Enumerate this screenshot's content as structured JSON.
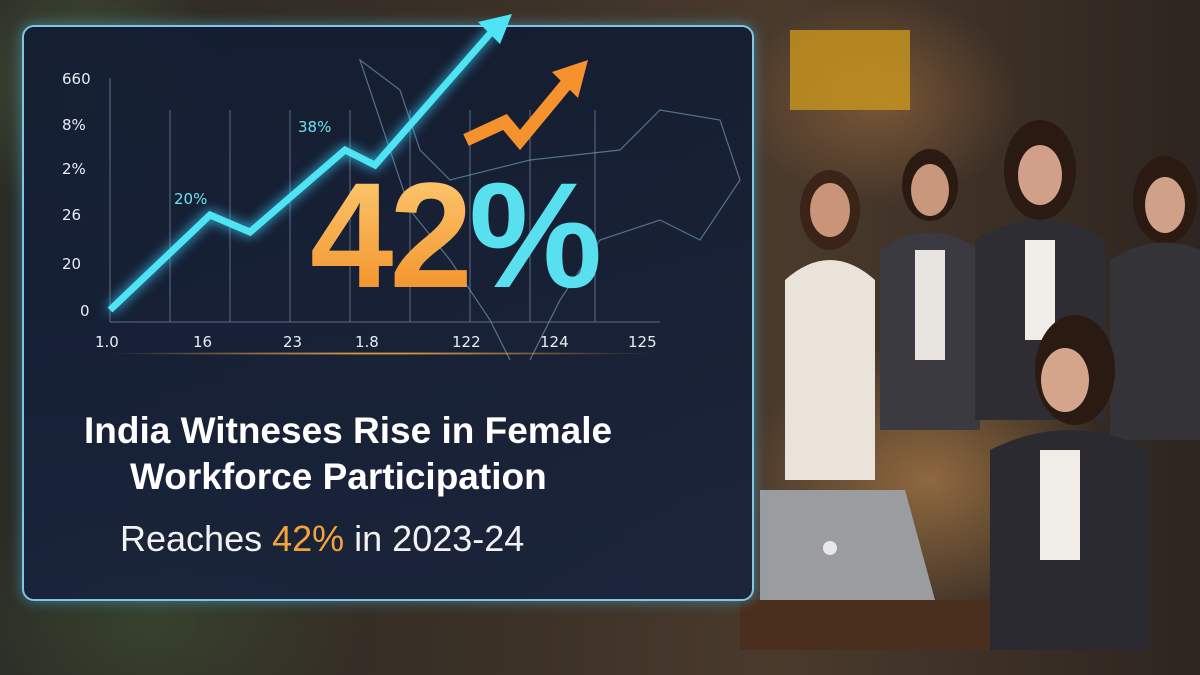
{
  "chart": {
    "y_ticks": [
      "660",
      "8%",
      "2%",
      "26",
      "20",
      "0"
    ],
    "x_ticks": [
      "1.0",
      "16",
      "23",
      "1.8",
      "122",
      "124",
      "125"
    ],
    "annotations": [
      "20%",
      "38%"
    ]
  },
  "hero": {
    "number": "42",
    "percent_sign": "%"
  },
  "headline": {
    "line1": "India Witneses Rise in Female",
    "line2": "Workforce Participation"
  },
  "subheadline": {
    "prefix": "Reaches ",
    "highlight": "42%",
    "suffix": " in 2023-24"
  },
  "colors": {
    "accent_orange": "#f6a23b",
    "accent_cyan": "#58e0ef",
    "panel_border": "#7fc6e6",
    "panel_bg": "#16223c"
  }
}
